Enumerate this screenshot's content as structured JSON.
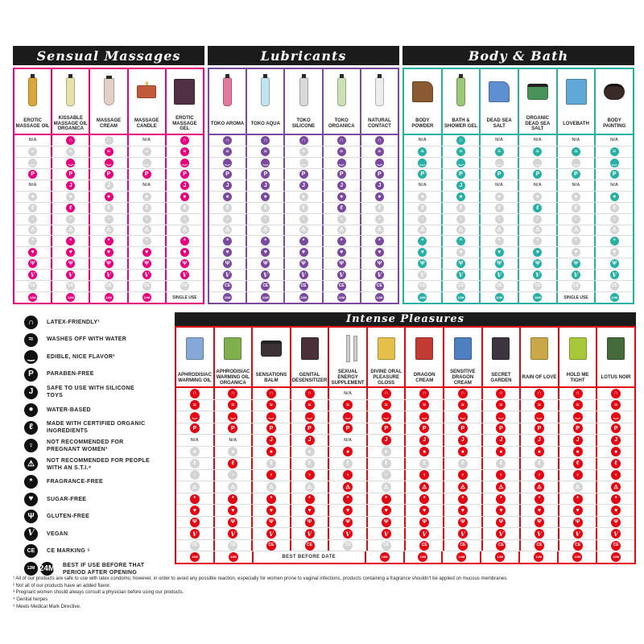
{
  "theme": {
    "header_bg": "#1b1b1b",
    "inactive_icon": "#d4d4d4",
    "pink": "#e6007e",
    "purple": "#7b4a9e",
    "teal": "#29b0a5",
    "red": "#e30613"
  },
  "labels": {
    "na": "N/A",
    "single_use": "SINGLE USE",
    "best_before_date": "BEST BEFORE DATE"
  },
  "icons": {
    "latex": {
      "name": "latex-friendly-icon",
      "glyph": "∩"
    },
    "washes": {
      "name": "washes-off-with-water-icon",
      "glyph": "≈"
    },
    "edible": {
      "name": "edible-icon",
      "glyph": "‿"
    },
    "paraben": {
      "name": "paraben-free-icon",
      "glyph": "P"
    },
    "silicone": {
      "name": "silicone-toys-safe-icon",
      "glyph": "J"
    },
    "waterbased": {
      "name": "water-based-icon",
      "glyph": "●"
    },
    "organic": {
      "name": "organic-ingredients-icon",
      "glyph": "ℓ"
    },
    "pregnant": {
      "name": "not-for-pregnant-women-icon",
      "glyph": "♀"
    },
    "sti": {
      "name": "not-for-sti-icon",
      "glyph": "⚠"
    },
    "fragrance": {
      "name": "fragrance-free-icon",
      "glyph": "*"
    },
    "sugar": {
      "name": "sugar-free-icon",
      "glyph": "♥"
    },
    "gluten": {
      "name": "gluten-free-icon",
      "glyph": "Ψ"
    },
    "vegan": {
      "name": "vegan-icon",
      "glyph": "V"
    },
    "ce": {
      "name": "ce-marking-icon",
      "glyph": "CE"
    },
    "bestbefore": {
      "name": "best-before-12m-icon",
      "glyph": "12M"
    },
    "bestbefore24": {
      "name": "best-before-24m-icon",
      "glyph": "24M"
    }
  },
  "legend": {
    "items": [
      {
        "icon": "latex",
        "label": "LATEX-FRIENDLY¹"
      },
      {
        "icon": "washes",
        "label": "WASHES OFF WITH WATER"
      },
      {
        "icon": "edible",
        "label": "EDIBLE, NICE FLAVOR²"
      },
      {
        "icon": "paraben",
        "label": "PARABEN-FREE"
      },
      {
        "icon": "silicone",
        "label": "SAFE TO USE WITH SILICONE TOYS"
      },
      {
        "icon": "waterbased",
        "label": "WATER-BASED"
      },
      {
        "icon": "organic",
        "label": "MADE WITH CERTIFIED ORGANIC INGREDIENTS"
      },
      {
        "icon": "pregnant",
        "label": "NOT RECOMMENDED FOR PREGNANT WOMEN³"
      },
      {
        "icon": "sti",
        "label": "NOT RECOMMENDED FOR PEOPLE WITH AN S.T.I.⁴"
      },
      {
        "icon": "fragrance",
        "label": "FRAGRANCE-FREE"
      },
      {
        "icon": "sugar",
        "label": "SUGAR-FREE"
      },
      {
        "icon": "gluten",
        "label": "GLUTEN-FREE"
      },
      {
        "icon": "vegan",
        "label": "VEGAN"
      },
      {
        "icon": "ce",
        "label": "CE MARKING ⁵"
      },
      {
        "icon": "bestbefore",
        "icon2": "bestbefore24",
        "label": "BEST IF USE BEFORE THAT PERIOD AFTER OPENING"
      }
    ]
  },
  "sections": [
    {
      "id": "sensual-massages",
      "title": "Sensual Massages",
      "color": "#e6007e",
      "products": [
        {
          "name": "EROTIC MASSAGE OIL",
          "shape": "bottle",
          "color": "#d9a838"
        },
        {
          "name": "KISSABLE MASSAGE OIL ORGANICA",
          "shape": "bottle",
          "color": "#e6e2ac"
        },
        {
          "name": "MASSAGE CREAM",
          "shape": "tube",
          "color": "#e3d0c8"
        },
        {
          "name": "MASSAGE CANDLE",
          "shape": "candle",
          "color": "#c05a3a"
        },
        {
          "name": "EROTIC MASSAGE GEL",
          "shape": "box",
          "color": "#513043"
        }
      ],
      "rows": [
        {
          "icon": "latex",
          "cells": [
            "n",
            "1",
            "0",
            "n",
            "1"
          ]
        },
        {
          "icon": "washes",
          "cells": [
            "0",
            "0",
            "1",
            "0",
            "1"
          ]
        },
        {
          "icon": "edible",
          "cells": [
            "0",
            "1",
            "1",
            "0",
            "1"
          ]
        },
        {
          "icon": "paraben",
          "cells": [
            "1",
            "1",
            "1",
            "1",
            "1"
          ]
        },
        {
          "icon": "silicone",
          "cells": [
            "n",
            "1",
            "0",
            "n",
            "1"
          ]
        },
        {
          "icon": "waterbased",
          "cells": [
            "0",
            "0",
            "1",
            "0",
            "1"
          ]
        },
        {
          "icon": "organic",
          "cells": [
            "0",
            "1",
            "0",
            "0",
            "0"
          ]
        },
        {
          "icon": "pregnant",
          "cells": [
            "0",
            "0",
            "0",
            "0",
            "0"
          ]
        },
        {
          "icon": "sti",
          "cells": [
            "0",
            "0",
            "0",
            "0",
            "0"
          ]
        },
        {
          "icon": "fragrance",
          "cells": [
            "0",
            "1",
            "1",
            "0",
            "1"
          ]
        },
        {
          "icon": "sugar",
          "cells": [
            "1",
            "1",
            "1",
            "1",
            "1"
          ]
        },
        {
          "icon": "gluten",
          "cells": [
            "1",
            "1",
            "1",
            "1",
            "1"
          ]
        },
        {
          "icon": "vegan",
          "cells": [
            "1",
            "1",
            "1",
            "1",
            "1"
          ]
        },
        {
          "icon": "ce",
          "cells": [
            "0",
            "0",
            "0",
            "0",
            "0"
          ]
        },
        {
          "icon": "bestbefore",
          "cells": [
            "1",
            "1",
            "1",
            "1",
            "s"
          ]
        }
      ]
    },
    {
      "id": "lubricants",
      "title": "Lubricants",
      "color": "#7b4a9e",
      "products": [
        {
          "name": "TOKO AROMA",
          "shape": "bottle",
          "color": "#e2789e"
        },
        {
          "name": "TOKO AQUA",
          "shape": "bottle",
          "color": "#bfe4ee"
        },
        {
          "name": "TOKO SILICONE",
          "shape": "bottle",
          "color": "#d9d9d9"
        },
        {
          "name": "TOKO ORGANICA",
          "shape": "bottle",
          "color": "#cbe0b4"
        },
        {
          "name": "NATURAL CONTACT",
          "shape": "bottle",
          "color": "#ededed"
        }
      ],
      "rows": [
        {
          "icon": "latex",
          "cells": [
            "1",
            "1",
            "1",
            "1",
            "1"
          ]
        },
        {
          "icon": "washes",
          "cells": [
            "1",
            "1",
            "0",
            "1",
            "1"
          ]
        },
        {
          "icon": "edible",
          "cells": [
            "1",
            "1",
            "0",
            "1",
            "1"
          ]
        },
        {
          "icon": "paraben",
          "cells": [
            "1",
            "1",
            "1",
            "1",
            "1"
          ]
        },
        {
          "icon": "silicone",
          "cells": [
            "1",
            "1",
            "1",
            "1",
            "1"
          ]
        },
        {
          "icon": "waterbased",
          "cells": [
            "1",
            "1",
            "0",
            "1",
            "1"
          ]
        },
        {
          "icon": "organic",
          "cells": [
            "0",
            "0",
            "0",
            "1",
            "0"
          ]
        },
        {
          "icon": "pregnant",
          "cells": [
            "0",
            "0",
            "0",
            "0",
            "0"
          ]
        },
        {
          "icon": "sti",
          "cells": [
            "0",
            "0",
            "0",
            "0",
            "0"
          ]
        },
        {
          "icon": "fragrance",
          "cells": [
            "1",
            "1",
            "1",
            "1",
            "1"
          ]
        },
        {
          "icon": "sugar",
          "cells": [
            "1",
            "1",
            "1",
            "1",
            "1"
          ]
        },
        {
          "icon": "gluten",
          "cells": [
            "1",
            "1",
            "1",
            "1",
            "1"
          ]
        },
        {
          "icon": "vegan",
          "cells": [
            "1",
            "1",
            "1",
            "1",
            "1"
          ]
        },
        {
          "icon": "ce",
          "cells": [
            "1",
            "1",
            "1",
            "1",
            "1"
          ]
        },
        {
          "icon": "bestbefore",
          "cells": [
            "1",
            "1",
            "1",
            "1",
            "1"
          ]
        }
      ]
    },
    {
      "id": "body-bath",
      "title": "Body & Bath",
      "color": "#29b0a5",
      "products": [
        {
          "name": "BODY POWDER",
          "shape": "sachet",
          "color": "#8a5a33"
        },
        {
          "name": "BATH & SHOWER GEL",
          "shape": "bottle",
          "color": "#9cc878"
        },
        {
          "name": "DEAD SEA SALT",
          "shape": "sachet",
          "color": "#5e8fd0"
        },
        {
          "name": "ORGANIC DEAD SEA SALT",
          "shape": "jar",
          "color": "#49935b"
        },
        {
          "name": "LOVEBATH",
          "shape": "box",
          "color": "#5fa8d8"
        },
        {
          "name": "BODY PAINTING",
          "shape": "pot",
          "color": "#3a2a28"
        }
      ],
      "rows": [
        {
          "icon": "latex",
          "cells": [
            "n",
            "1",
            "n",
            "n",
            "n",
            "n"
          ]
        },
        {
          "icon": "washes",
          "cells": [
            "1",
            "1",
            "1",
            "1",
            "1",
            "1"
          ]
        },
        {
          "icon": "edible",
          "cells": [
            "1",
            "1",
            "0",
            "0",
            "0",
            "1"
          ]
        },
        {
          "icon": "paraben",
          "cells": [
            "1",
            "1",
            "1",
            "1",
            "1",
            "1"
          ]
        },
        {
          "icon": "silicone",
          "cells": [
            "n",
            "1",
            "n",
            "n",
            "n",
            "n"
          ]
        },
        {
          "icon": "waterbased",
          "cells": [
            "0",
            "1",
            "0",
            "0",
            "0",
            "1"
          ]
        },
        {
          "icon": "organic",
          "cells": [
            "0",
            "0",
            "0",
            "1",
            "0",
            "0"
          ]
        },
        {
          "icon": "pregnant",
          "cells": [
            "0",
            "0",
            "0",
            "0",
            "0",
            "0"
          ]
        },
        {
          "icon": "sti",
          "cells": [
            "0",
            "0",
            "0",
            "0",
            "0",
            "0"
          ]
        },
        {
          "icon": "fragrance",
          "cells": [
            "1",
            "1",
            "0",
            "0",
            "0",
            "1"
          ]
        },
        {
          "icon": "sugar",
          "cells": [
            "1",
            "0",
            "1",
            "1",
            "0",
            "0"
          ]
        },
        {
          "icon": "gluten",
          "cells": [
            "1",
            "1",
            "1",
            "1",
            "1",
            "1"
          ]
        },
        {
          "icon": "vegan",
          "cells": [
            "0",
            "1",
            "1",
            "1",
            "1",
            "1"
          ]
        },
        {
          "icon": "ce",
          "cells": [
            "0",
            "0",
            "0",
            "0",
            "0",
            "0"
          ]
        },
        {
          "icon": "bestbefore",
          "cells": [
            "1",
            "1",
            "1",
            "1",
            "s",
            "1"
          ]
        }
      ]
    },
    {
      "id": "intense-pleasures",
      "title": "Intense Pleasures",
      "color": "#e30613",
      "products": [
        {
          "name": "APHRODISIAC WARMING OIL",
          "shape": "box",
          "color": "#85a9d6"
        },
        {
          "name": "APHRODISIAC WARMING OIL ORGANICA",
          "shape": "box",
          "color": "#7fb04d"
        },
        {
          "name": "SENSATIONS BALM",
          "shape": "jar",
          "color": "#3c3136"
        },
        {
          "name": "GENITAL DESENSITIZER",
          "shape": "box",
          "color": "#4a3038"
        },
        {
          "name": "SEXUAL ENERGY SUPPLEMENT",
          "shape": "vials",
          "color": "#cfcfcf"
        },
        {
          "name": "DIVINE ORAL PLEASURE GLOSS",
          "shape": "box",
          "color": "#e4c04a"
        },
        {
          "name": "DRAGON CREAM",
          "shape": "box",
          "color": "#c23b33"
        },
        {
          "name": "SENSITIVE DRAGON CREAM",
          "shape": "box",
          "color": "#4e7fbf"
        },
        {
          "name": "SECRET GARDEN",
          "shape": "box",
          "color": "#3c3440"
        },
        {
          "name": "RAIN OF LOVE",
          "shape": "box",
          "color": "#c9a84a"
        },
        {
          "name": "HOLD ME TIGHT",
          "shape": "box",
          "color": "#a8c83a"
        },
        {
          "name": "LOTUS NOIR",
          "shape": "box",
          "color": "#456b3b"
        }
      ],
      "rows": [
        {
          "icon": "latex",
          "cells": [
            "1",
            "1",
            "1",
            "1",
            "n",
            "1",
            "1",
            "1",
            "1",
            "1",
            "1",
            "1"
          ]
        },
        {
          "icon": "washes",
          "cells": [
            "1",
            "1",
            "1",
            "1",
            "1",
            "1",
            "1",
            "1",
            "1",
            "1",
            "1",
            "1"
          ]
        },
        {
          "icon": "edible",
          "cells": [
            "1",
            "1",
            "1",
            "1",
            "1",
            "1",
            "1",
            "1",
            "1",
            "1",
            "1",
            "1"
          ]
        },
        {
          "icon": "paraben",
          "cells": [
            "1",
            "1",
            "1",
            "1",
            "1",
            "1",
            "1",
            "1",
            "1",
            "1",
            "1",
            "1"
          ]
        },
        {
          "icon": "silicone",
          "cells": [
            "n",
            "n",
            "1",
            "1",
            "n",
            "1",
            "1",
            "1",
            "1",
            "1",
            "1",
            "1"
          ]
        },
        {
          "icon": "waterbased",
          "cells": [
            "0",
            "0",
            "1",
            "0",
            "1",
            "0",
            "1",
            "1",
            "1",
            "1",
            "1",
            "1"
          ]
        },
        {
          "icon": "organic",
          "cells": [
            "0",
            "1",
            "0",
            "0",
            "0",
            "0",
            "0",
            "0",
            "0",
            "0",
            "1",
            "1"
          ]
        },
        {
          "icon": "pregnant",
          "cells": [
            "0",
            "0",
            "1",
            "1",
            "1",
            "0",
            "1",
            "1",
            "1",
            "1",
            "1",
            "1"
          ]
        },
        {
          "icon": "sti",
          "cells": [
            "0",
            "0",
            "0",
            "0",
            "1",
            "0",
            "1",
            "1",
            "1",
            "1",
            "0",
            "1"
          ]
        },
        {
          "icon": "fragrance",
          "cells": [
            "1",
            "1",
            "1",
            "1",
            "1",
            "1",
            "1",
            "1",
            "1",
            "1",
            "1",
            "1"
          ]
        },
        {
          "icon": "sugar",
          "cells": [
            "1",
            "1",
            "1",
            "1",
            "1",
            "1",
            "1",
            "1",
            "1",
            "1",
            "1",
            "1"
          ]
        },
        {
          "icon": "gluten",
          "cells": [
            "1",
            "1",
            "1",
            "1",
            "1",
            "1",
            "1",
            "1",
            "1",
            "1",
            "1",
            "1"
          ]
        },
        {
          "icon": "vegan",
          "cells": [
            "1",
            "1",
            "1",
            "1",
            "1",
            "1",
            "1",
            "1",
            "1",
            "1",
            "1",
            "1"
          ]
        },
        {
          "icon": "ce",
          "cells": [
            "0",
            "0",
            "1",
            "1",
            "0",
            "0",
            "1",
            "1",
            "1",
            "1",
            "1",
            "1"
          ]
        },
        {
          "icon": "bestbefore",
          "cells": [
            "1",
            "1",
            "b",
            "b",
            "b",
            "1",
            "1",
            "1",
            "1",
            "1",
            "1",
            "1"
          ]
        }
      ]
    }
  ],
  "footnotes": [
    "¹ All of our products are safe to use with latex condoms; however, in order to avoid any possible reaction, especially for women prone to vaginal infections, products containing a fragrance shouldn't be applied on mucous membranes.",
    "² Not all of our products have an added flavor.",
    "³ Pregnant women should always consult a physician before using our products.",
    "⁴ Genital herpes",
    "⁵ Meets Medical Mark Directive."
  ]
}
